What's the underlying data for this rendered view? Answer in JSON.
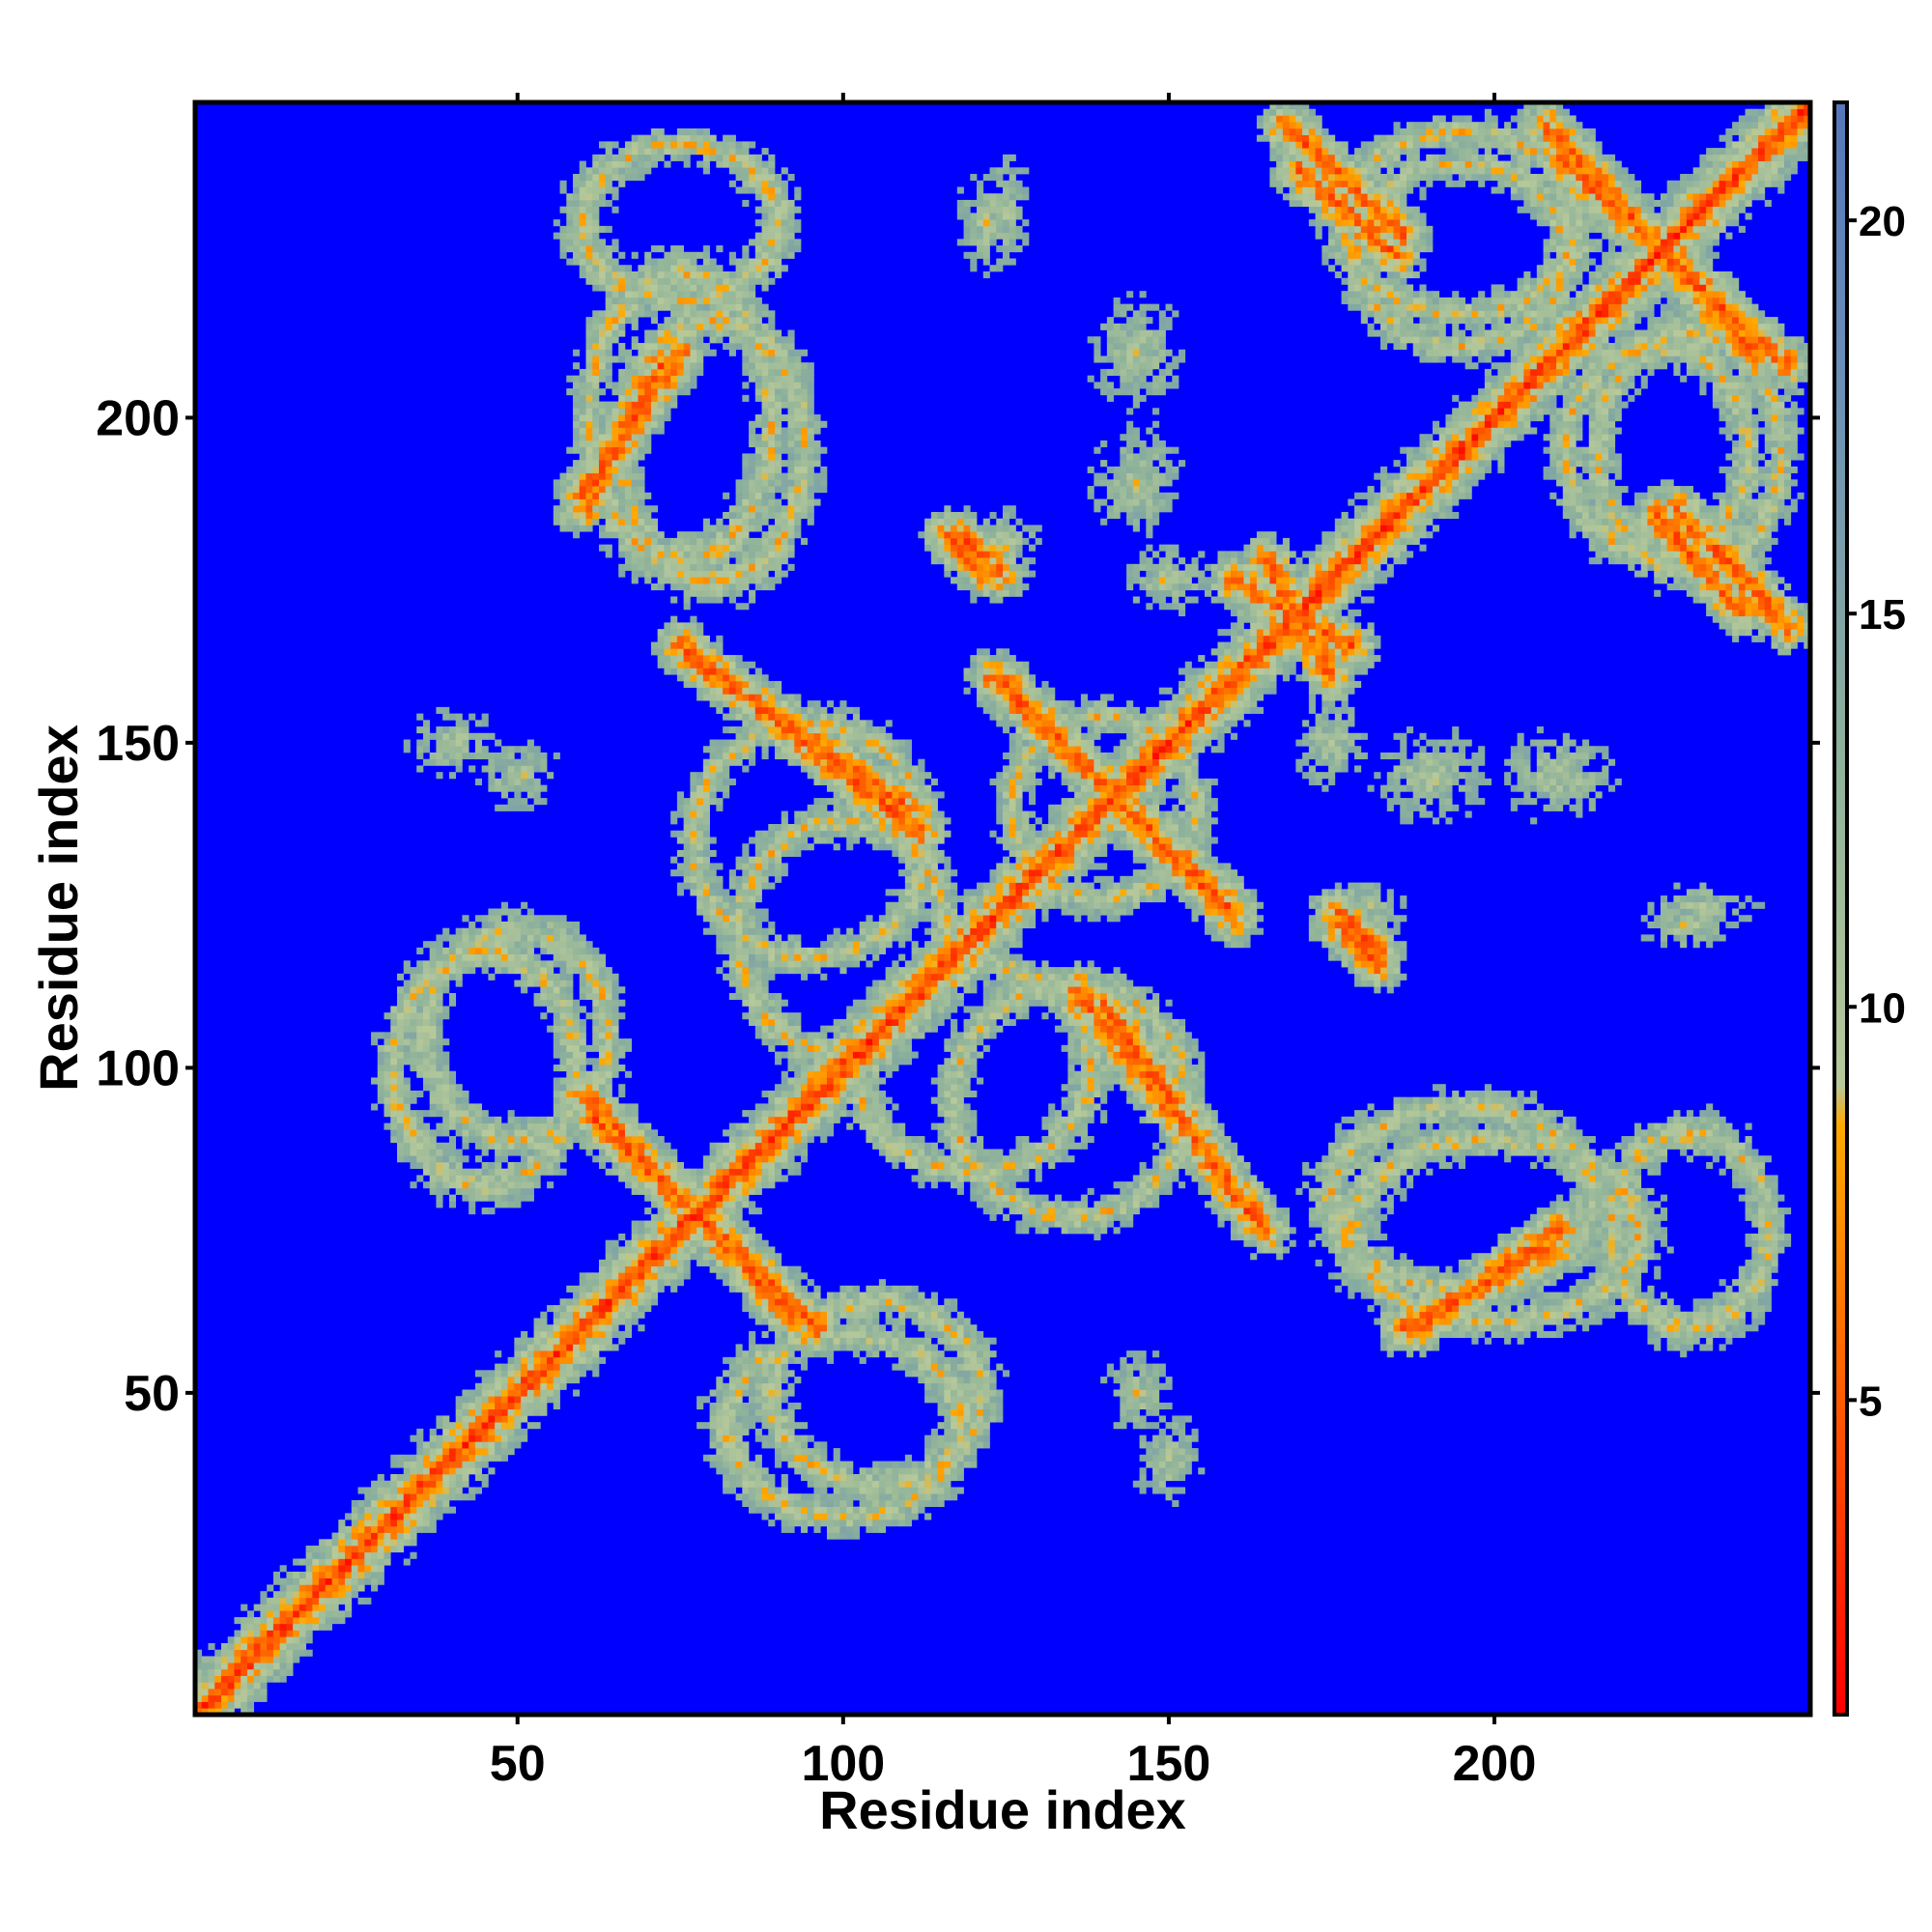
{
  "chart_data": {
    "type": "heatmap",
    "title": "",
    "xlabel": "Residue index",
    "ylabel": "Residue index",
    "n_residues": 248,
    "xlim": [
      1,
      248
    ],
    "ylim": [
      1,
      248
    ],
    "x_ticks": [
      50,
      100,
      150,
      200
    ],
    "y_ticks": [
      50,
      100,
      150,
      200
    ],
    "colorbar": {
      "range": [
        1,
        21.5
      ],
      "ticks": [
        5,
        10,
        15,
        20
      ],
      "colors": {
        "low": "#ff0000",
        "mid_low": "#ff7700",
        "mid": "#ff9900",
        "mid_high": "#a7c4a0",
        "high": "#6a8fb8",
        "max": "#0000ff"
      },
      "stops": [
        {
          "value": 1,
          "color": "#ff0000"
        },
        {
          "value": 4,
          "color": "#ff4400"
        },
        {
          "value": 7,
          "color": "#ff8800"
        },
        {
          "value": 8.5,
          "color": "#ffaa00"
        },
        {
          "value": 9,
          "color": "#b7c99a"
        },
        {
          "value": 13,
          "color": "#8fb39a"
        },
        {
          "value": 18,
          "color": "#6a8fb8"
        },
        {
          "value": 21.5,
          "color": "#5577bb"
        }
      ],
      "saturate_color": "#0000ff",
      "saturate_threshold": 15
    },
    "background_color": "#0000ff",
    "contact_bands": [
      {
        "kind": "diagonal",
        "from": [
          1,
          1
        ],
        "to": [
          248,
          248
        ]
      },
      {
        "kind": "segment",
        "from": [
          60,
          96
        ],
        "to": [
          92,
          62
        ]
      },
      {
        "kind": "segment",
        "from": [
          75,
          165
        ],
        "to": [
          112,
          136
        ]
      },
      {
        "kind": "segment",
        "from": [
          123,
          160
        ],
        "to": [
          160,
          124
        ]
      },
      {
        "kind": "segment",
        "from": [
          140,
          110
        ],
        "to": [
          162,
          78
        ]
      },
      {
        "kind": "segment",
        "from": [
          165,
          178
        ],
        "to": [
          175,
          160
        ]
      },
      {
        "kind": "segment",
        "from": [
          170,
          238
        ],
        "to": [
          185,
          225
        ]
      },
      {
        "kind": "segment",
        "from": [
          210,
          240
        ],
        "to": [
          245,
          208
        ]
      },
      {
        "kind": "segment",
        "from": [
          228,
          186
        ],
        "to": [
          245,
          168
        ]
      },
      {
        "kind": "segment",
        "from": [
          186,
          60
        ],
        "to": [
          208,
          72
        ]
      },
      {
        "kind": "segment",
        "from": [
          60,
          188
        ],
        "to": [
          75,
          210
        ]
      },
      {
        "kind": "segment",
        "from": [
          118,
          182
        ],
        "to": [
          124,
          176
        ]
      },
      {
        "kind": "segment",
        "from": [
          176,
          122
        ],
        "to": [
          182,
          116
        ]
      }
    ],
    "contact_loops": [
      {
        "cx": 45,
        "cy": 100,
        "rx": 14,
        "ry": 18
      },
      {
        "cx": 80,
        "cy": 195,
        "rx": 14,
        "ry": 20
      },
      {
        "cx": 75,
        "cy": 230,
        "rx": 15,
        "ry": 12
      },
      {
        "cx": 100,
        "cy": 120,
        "rx": 16,
        "ry": 18
      },
      {
        "cx": 105,
        "cy": 50,
        "rx": 16,
        "ry": 14
      },
      {
        "cx": 135,
        "cy": 95,
        "rx": 18,
        "ry": 18
      },
      {
        "cx": 140,
        "cy": 140,
        "rx": 14,
        "ry": 14
      },
      {
        "cx": 200,
        "cy": 75,
        "rx": 22,
        "ry": 14
      },
      {
        "cx": 195,
        "cy": 225,
        "rx": 16,
        "ry": 14
      },
      {
        "cx": 230,
        "cy": 195,
        "rx": 14,
        "ry": 18
      }
    ],
    "contact_patches": [
      {
        "cx": 40,
        "cy": 150,
        "rx": 8,
        "ry": 6
      },
      {
        "cx": 122,
        "cy": 230,
        "rx": 5,
        "ry": 9
      },
      {
        "cx": 125,
        "cy": 180,
        "rx": 6,
        "ry": 7
      },
      {
        "cx": 145,
        "cy": 50,
        "rx": 6,
        "ry": 7
      },
      {
        "cx": 145,
        "cy": 190,
        "rx": 8,
        "ry": 10
      },
      {
        "cx": 175,
        "cy": 150,
        "rx": 6,
        "ry": 8
      },
      {
        "cx": 232,
        "cy": 125,
        "rx": 10,
        "ry": 4
      },
      {
        "cx": 145,
        "cy": 210,
        "rx": 8,
        "ry": 10
      }
    ]
  }
}
